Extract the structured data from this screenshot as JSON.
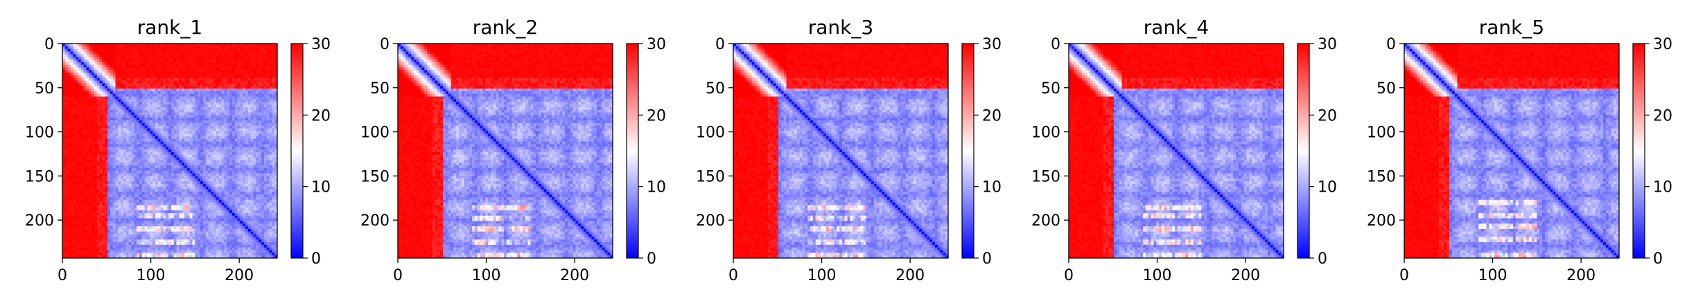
{
  "chart_data": [
    {
      "type": "heatmap",
      "title": "rank_1",
      "xlim": [
        0,
        243
      ],
      "ylim": [
        243,
        0
      ],
      "xticks": [
        0,
        100,
        200
      ],
      "yticks": [
        0,
        50,
        100,
        150,
        200
      ],
      "colorbar": {
        "min": 0,
        "max": 30,
        "ticks": [
          0,
          10,
          20,
          30
        ],
        "colormap": "bwr"
      },
      "grid": false,
      "legend": "none",
      "matrix_summary": {
        "size": 243,
        "diagonal_value": 0,
        "upper_block_value": 30,
        "left_block_value": 30,
        "core_region_start": 60,
        "core_value_range": [
          3,
          14
        ],
        "warm_stripes_rows": [
          185,
          195,
          210,
          225,
          240
        ]
      }
    },
    {
      "type": "heatmap",
      "title": "rank_2",
      "xlim": [
        0,
        243
      ],
      "ylim": [
        243,
        0
      ],
      "xticks": [
        0,
        100,
        200
      ],
      "yticks": [
        0,
        50,
        100,
        150,
        200
      ],
      "colorbar": {
        "min": 0,
        "max": 30,
        "ticks": [
          0,
          10,
          20,
          30
        ],
        "colormap": "bwr"
      },
      "grid": false,
      "legend": "none",
      "matrix_summary": {
        "size": 243,
        "diagonal_value": 0,
        "upper_block_value": 30,
        "left_block_value": 30,
        "core_region_start": 60,
        "core_value_range": [
          3,
          14
        ],
        "warm_stripes_rows": [
          185,
          197,
          210,
          225,
          240
        ]
      }
    },
    {
      "type": "heatmap",
      "title": "rank_3",
      "xlim": [
        0,
        243
      ],
      "ylim": [
        243,
        0
      ],
      "xticks": [
        0,
        100,
        200
      ],
      "yticks": [
        0,
        50,
        100,
        150,
        200
      ],
      "colorbar": {
        "min": 0,
        "max": 30,
        "ticks": [
          0,
          10,
          20,
          30
        ],
        "colormap": "bwr"
      },
      "grid": false,
      "legend": "none",
      "matrix_summary": {
        "size": 243,
        "diagonal_value": 0,
        "upper_block_value": 30,
        "left_block_value": 30,
        "core_region_start": 60,
        "core_value_range": [
          3,
          14
        ],
        "warm_stripes_rows": [
          185,
          197,
          210,
          225,
          240
        ]
      }
    },
    {
      "type": "heatmap",
      "title": "rank_4",
      "xlim": [
        0,
        243
      ],
      "ylim": [
        243,
        0
      ],
      "xticks": [
        0,
        100,
        200
      ],
      "yticks": [
        0,
        50,
        100,
        150,
        200
      ],
      "colorbar": {
        "min": 0,
        "max": 30,
        "ticks": [
          0,
          10,
          20,
          30
        ],
        "colormap": "bwr"
      },
      "grid": false,
      "legend": "none",
      "matrix_summary": {
        "size": 243,
        "diagonal_value": 0,
        "upper_block_value": 30,
        "left_block_value": 30,
        "core_region_start": 60,
        "core_value_range": [
          3,
          14
        ],
        "warm_stripes_rows": [
          185,
          195,
          210,
          225,
          240
        ]
      }
    },
    {
      "type": "heatmap",
      "title": "rank_5",
      "xlim": [
        0,
        243
      ],
      "ylim": [
        243,
        0
      ],
      "xticks": [
        0,
        100,
        200
      ],
      "yticks": [
        0,
        50,
        100,
        150,
        200
      ],
      "colorbar": {
        "min": 0,
        "max": 30,
        "ticks": [
          0,
          10,
          20,
          30
        ],
        "colormap": "bwr"
      },
      "grid": false,
      "legend": "none",
      "matrix_summary": {
        "size": 243,
        "diagonal_value": 0,
        "upper_block_value": 30,
        "left_block_value": 30,
        "core_region_start": 60,
        "core_value_range": [
          3,
          14
        ],
        "warm_stripes_rows": [
          180,
          195,
          208,
          222,
          240
        ]
      }
    }
  ]
}
